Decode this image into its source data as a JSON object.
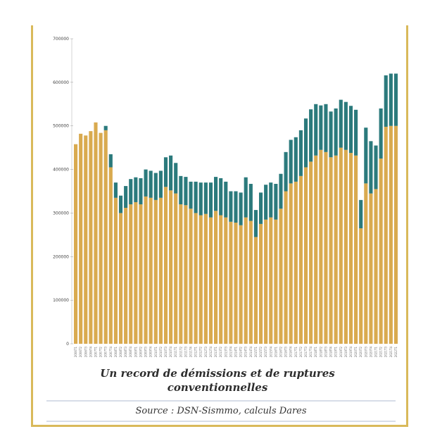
{
  "chart_data": {
    "type": "bar",
    "stacked": true,
    "title": "Un record de démissions et de ruptures conventionnelles",
    "source": "Source : DSN-Sismmo, calculs Dares",
    "xlabel": "",
    "ylabel": "",
    "ylim": [
      0,
      700000
    ],
    "yticks": [
      "0",
      "100000",
      "200000",
      "300000",
      "400000",
      "500000",
      "600000",
      "700000"
    ],
    "grid": false,
    "legend": "none",
    "colors": {
      "series1": "#d9aa4f",
      "series2": "#2b7a7c"
    },
    "categories": [
      "2006T1",
      "2006T2",
      "2006T3",
      "2006T4",
      "2007T1",
      "2007T2",
      "2007T3",
      "2007T4",
      "2008T1",
      "2008T2",
      "2008T3",
      "2008T4",
      "2009T1",
      "2009T2",
      "2009T3",
      "2009T4",
      "2010T1",
      "2010T2",
      "2010T3",
      "2010T4",
      "2011T1",
      "2011T2",
      "2011T3",
      "2011T4",
      "2012T1",
      "2012T2",
      "2012T3",
      "2012T4",
      "2013T1",
      "2013T2",
      "2013T3",
      "2013T4",
      "2014T1",
      "2014T2",
      "2014T3",
      "2014T4",
      "2015T1",
      "2015T2",
      "2015T3",
      "2015T4",
      "2016T1",
      "2016T2",
      "2016T3",
      "2016T4",
      "2017T1",
      "2017T2",
      "2017T3",
      "2017T4",
      "2018T1",
      "2018T2",
      "2018T3",
      "2018T4",
      "2019T1",
      "2019T2",
      "2019T3",
      "2019T4",
      "2020T1",
      "2020T2",
      "2020T3",
      "2020T4",
      "2021T1",
      "2021T2",
      "2021T3",
      "2021T4",
      "2022T1"
    ],
    "series": [
      {
        "values": [
          458000,
          482000,
          478000,
          488000,
          508000,
          484000,
          490000,
          405000,
          335000,
          300000,
          312000,
          320000,
          325000,
          320000,
          338000,
          335000,
          330000,
          335000,
          360000,
          352000,
          345000,
          320000,
          318000,
          310000,
          300000,
          295000,
          298000,
          290000,
          305000,
          295000,
          290000,
          280000,
          278000,
          272000,
          290000,
          282000,
          245000,
          275000,
          285000,
          290000,
          285000,
          310000,
          350000,
          368000,
          372000,
          385000,
          405000,
          418000,
          432000,
          445000,
          440000,
          428000,
          432000,
          450000,
          445000,
          438000,
          432000,
          265000,
          368000,
          345000,
          355000,
          425000,
          498000,
          500000,
          500000
        ]
      },
      {
        "values": [
          0,
          0,
          0,
          0,
          0,
          0,
          10000,
          30000,
          35000,
          40000,
          50000,
          58000,
          57000,
          60000,
          62000,
          62000,
          62000,
          62000,
          68000,
          80000,
          70000,
          65000,
          65000,
          62000,
          72000,
          75000,
          72000,
          80000,
          78000,
          85000,
          82000,
          70000,
          72000,
          75000,
          92000,
          85000,
          62000,
          72000,
          80000,
          80000,
          82000,
          80000,
          90000,
          100000,
          102000,
          105000,
          112000,
          120000,
          118000,
          102000,
          110000,
          105000,
          108000,
          110000,
          110000,
          108000,
          105000,
          65000,
          128000,
          120000,
          100000,
          115000,
          118000,
          120000,
          120000
        ]
      }
    ]
  }
}
